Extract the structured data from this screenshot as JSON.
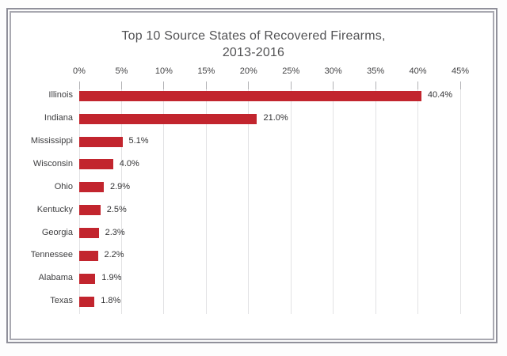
{
  "page": {
    "background_color": "#ffffff",
    "frame_outer_border_color": "#90909a",
    "frame_inner_border_color": "#a9a9b1"
  },
  "chart_data": {
    "type": "bar",
    "orientation": "horizontal",
    "title": "Top 10 Source States of Recovered Firearms, 2013-2016",
    "title_lines": [
      "Top 10 Source States of Recovered Firearms,",
      "2013-2016"
    ],
    "categories": [
      "Illinois",
      "Indiana",
      "Mississippi",
      "Wisconsin",
      "Ohio",
      "Kentucky",
      "Georgia",
      "Tennessee",
      "Alabama",
      "Texas"
    ],
    "values": [
      40.4,
      21.0,
      5.1,
      4.0,
      2.9,
      2.5,
      2.3,
      2.2,
      1.9,
      1.8
    ],
    "value_labels": [
      "40.4%",
      "21.0%",
      "5.1%",
      "4.0%",
      "2.9%",
      "2.5%",
      "2.3%",
      "2.2%",
      "1.9%",
      "1.8%"
    ],
    "x_tick_values": [
      0,
      5,
      10,
      15,
      20,
      25,
      30,
      35,
      40,
      45
    ],
    "x_tick_labels": [
      "0%",
      "5%",
      "10%",
      "15%",
      "20%",
      "25%",
      "30%",
      "35%",
      "40%",
      "45%"
    ],
    "xlim": [
      0,
      45
    ],
    "axis_position": "top",
    "grid": true,
    "legend": "none",
    "bar_color": "#c2252e",
    "gridline_color": "#e2e2e4",
    "tick_color": "#b2b2b5",
    "text_color": "#424244"
  }
}
